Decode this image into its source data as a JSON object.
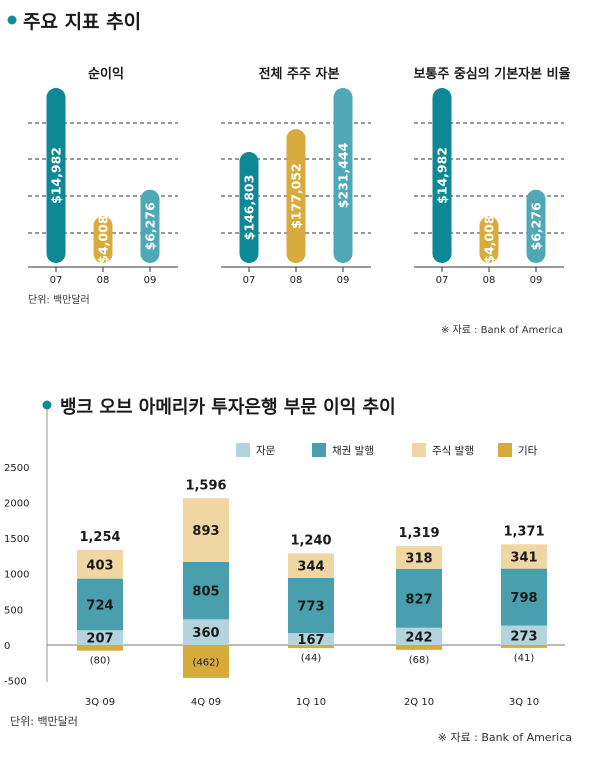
{
  "colors": {
    "teal_dark": "#0e8894",
    "gold": "#d8ab3c",
    "teal_light": "#4ea8b6",
    "advisory": "#b3d3dd",
    "bond": "#4a9fae",
    "equity": "#efd6a2",
    "other": "#d7ab3a",
    "bullet": "#128a97"
  },
  "top": {
    "heading": "주요 지표 추이",
    "unit": "단위: 백만달러",
    "source": "※ 자료 : Bank of America"
  },
  "bottom": {
    "heading": "뱅크 오브 아메리카 투자은행 부문 이익 추이",
    "unit": "단위: 백만달러",
    "source": "※ 자료 : Bank of America"
  },
  "chart_data": [
    {
      "type": "bar",
      "title": "순이익",
      "categories": [
        "07",
        "08",
        "09"
      ],
      "values": [
        14982,
        4008,
        6276
      ],
      "labels": [
        "$14,982",
        "$4,008",
        "$6,276"
      ],
      "grid": "dashed"
    },
    {
      "type": "bar",
      "title": "전체 주주 자본",
      "categories": [
        "07",
        "08",
        "09"
      ],
      "values": [
        146803,
        177052,
        231444
      ],
      "labels": [
        "$146,803",
        "$177,052",
        "$231,444"
      ],
      "grid": "dashed"
    },
    {
      "type": "bar",
      "title": "보통주 중심의 기본자본 비율",
      "categories": [
        "07",
        "08",
        "09"
      ],
      "values": [
        14982,
        4008,
        6276
      ],
      "labels": [
        "$14,982",
        "$4,008",
        "$6,276"
      ],
      "grid": "dashed"
    },
    {
      "type": "bar",
      "stacked": true,
      "categories": [
        "3Q 09",
        "4Q 09",
        "1Q 10",
        "2Q 10",
        "3Q 10"
      ],
      "ylim": [
        -500,
        2500
      ],
      "yticks": [
        "2500",
        "2000",
        "1500",
        "1000",
        "500",
        "0",
        "-500"
      ],
      "series": [
        {
          "name": "자문",
          "values": [
            207,
            360,
            167,
            242,
            273
          ]
        },
        {
          "name": "채권 발행",
          "values": [
            724,
            805,
            773,
            827,
            798
          ]
        },
        {
          "name": "주식 발행",
          "values": [
            403,
            893,
            344,
            318,
            341
          ]
        },
        {
          "name": "기타",
          "values": [
            -80,
            -462,
            -44,
            -68,
            -41
          ]
        }
      ],
      "totals": [
        "1,254",
        "1,596",
        "1,240",
        "1,319",
        "1,371"
      ],
      "negative_labels": [
        "(80)",
        "(462)",
        "(44)",
        "(68)",
        "(41)"
      ],
      "legend": "top"
    }
  ]
}
